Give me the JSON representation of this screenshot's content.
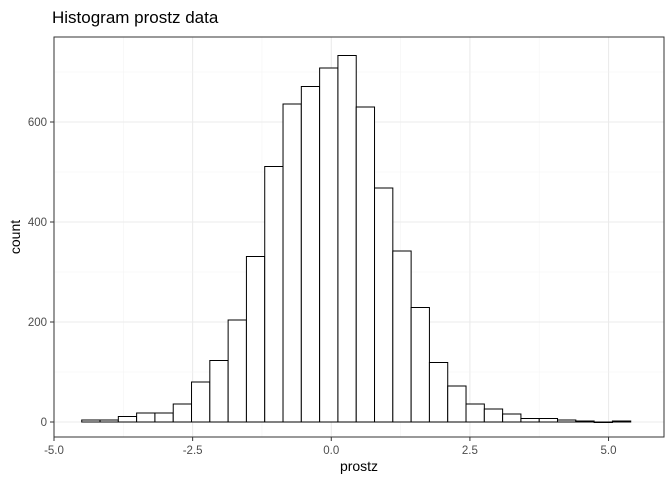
{
  "chart_data": {
    "type": "histogram",
    "title": "Histogram prostz data",
    "xlabel": "prostz",
    "ylabel": "count",
    "xlim": [
      -5.0,
      6.0
    ],
    "ylim": [
      -30,
      770
    ],
    "x_ticks": [
      -5.0,
      -2.5,
      0.0,
      2.5,
      5.0
    ],
    "x_tick_labels": [
      "-5.0",
      "-2.5",
      "0.0",
      "2.5",
      "5.0"
    ],
    "y_ticks": [
      0,
      200,
      400,
      600
    ],
    "y_tick_labels": [
      "0",
      "200",
      "400",
      "600"
    ],
    "grid": true,
    "theme": "bw",
    "bar_fill": "#ffffff",
    "bar_stroke": "#000000",
    "bins": [
      {
        "start": -4.5,
        "end": -4.17,
        "count": 4
      },
      {
        "start": -4.17,
        "end": -3.84,
        "count": 4
      },
      {
        "start": -3.84,
        "end": -3.51,
        "count": 11
      },
      {
        "start": -3.51,
        "end": -3.18,
        "count": 18
      },
      {
        "start": -3.18,
        "end": -2.85,
        "count": 18
      },
      {
        "start": -2.85,
        "end": -2.52,
        "count": 36
      },
      {
        "start": -2.52,
        "end": -2.19,
        "count": 80
      },
      {
        "start": -2.19,
        "end": -1.86,
        "count": 123
      },
      {
        "start": -1.86,
        "end": -1.53,
        "count": 204
      },
      {
        "start": -1.53,
        "end": -1.2,
        "count": 331
      },
      {
        "start": -1.2,
        "end": -0.87,
        "count": 511
      },
      {
        "start": -0.87,
        "end": -0.54,
        "count": 636
      },
      {
        "start": -0.54,
        "end": -0.21,
        "count": 671
      },
      {
        "start": -0.21,
        "end": 0.12,
        "count": 708
      },
      {
        "start": 0.12,
        "end": 0.45,
        "count": 733
      },
      {
        "start": 0.45,
        "end": 0.78,
        "count": 630
      },
      {
        "start": 0.78,
        "end": 1.11,
        "count": 468
      },
      {
        "start": 1.11,
        "end": 1.44,
        "count": 342
      },
      {
        "start": 1.44,
        "end": 1.77,
        "count": 229
      },
      {
        "start": 1.77,
        "end": 2.1,
        "count": 119
      },
      {
        "start": 2.1,
        "end": 2.43,
        "count": 72
      },
      {
        "start": 2.43,
        "end": 2.76,
        "count": 36
      },
      {
        "start": 2.76,
        "end": 3.09,
        "count": 26
      },
      {
        "start": 3.09,
        "end": 3.42,
        "count": 16
      },
      {
        "start": 3.42,
        "end": 3.75,
        "count": 7
      },
      {
        "start": 3.75,
        "end": 4.08,
        "count": 7
      },
      {
        "start": 4.08,
        "end": 4.41,
        "count": 4
      },
      {
        "start": 4.41,
        "end": 4.74,
        "count": 2
      },
      {
        "start": 4.74,
        "end": 5.07,
        "count": 0
      },
      {
        "start": 5.07,
        "end": 5.4,
        "count": 2
      }
    ]
  }
}
